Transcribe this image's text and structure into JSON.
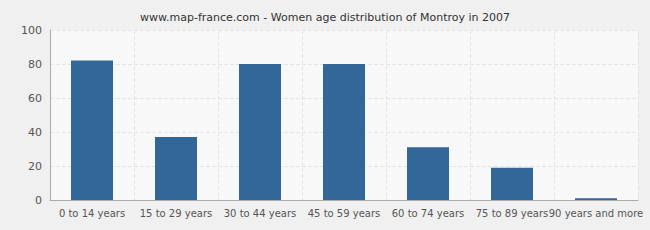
{
  "chart_data": {
    "type": "bar",
    "title": "www.map-france.com - Women age distribution of Montroy in 2007",
    "categories": [
      "0 to 14 years",
      "15 to 29 years",
      "30 to 44 years",
      "45 to 59 years",
      "60 to 74 years",
      "75 to 89 years",
      "90 years and more"
    ],
    "values": [
      82,
      37,
      80,
      80,
      31,
      19,
      1
    ],
    "color": "#336699",
    "ylim": [
      0,
      100
    ],
    "yticks": [
      0,
      20,
      40,
      60,
      80,
      100
    ],
    "grid": true
  }
}
